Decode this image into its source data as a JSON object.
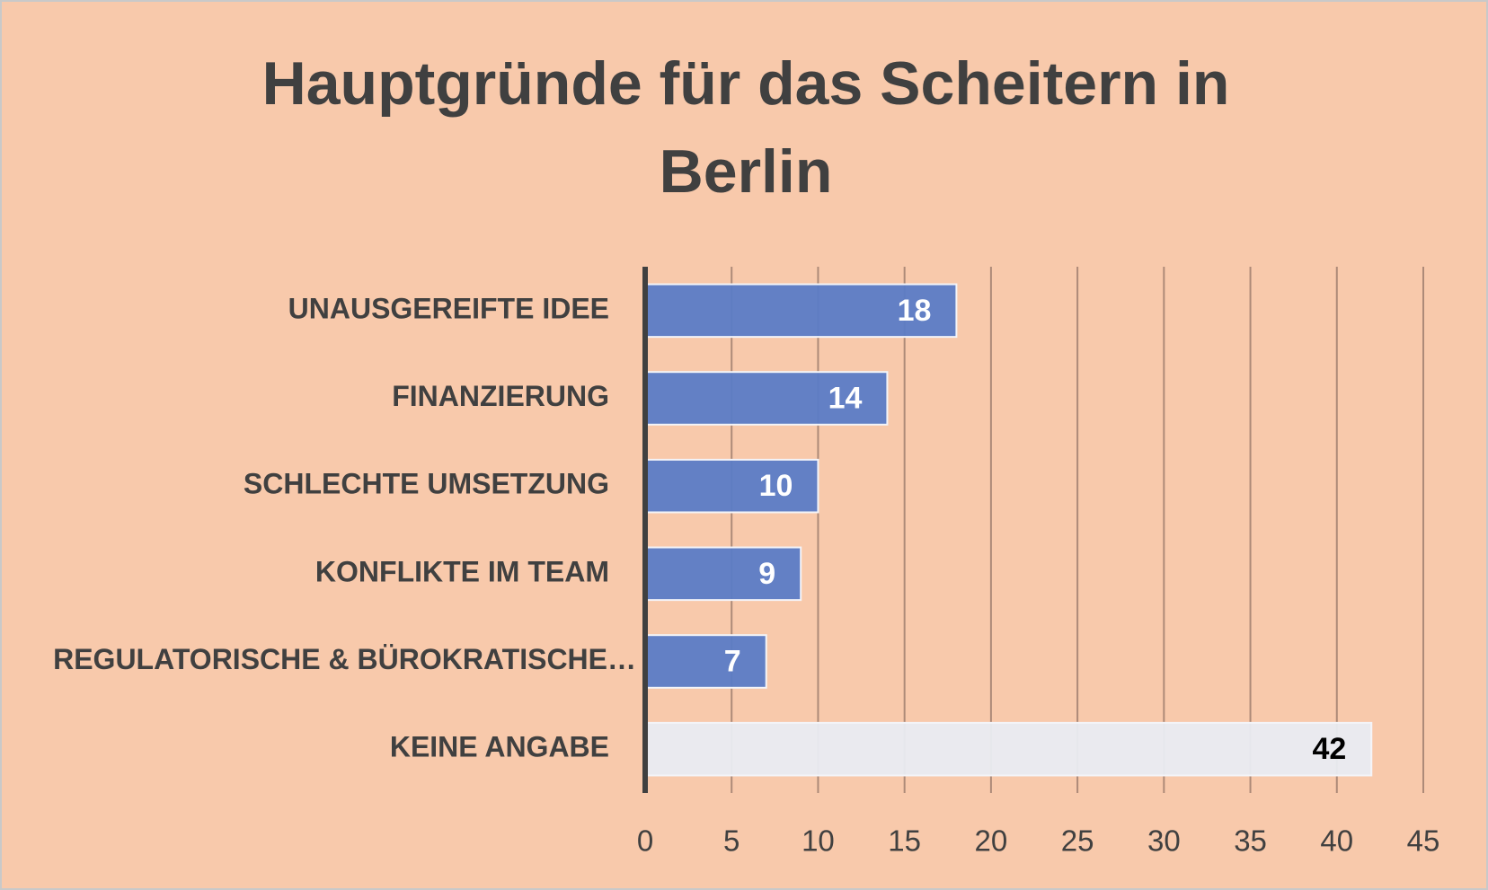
{
  "chart_data": {
    "type": "bar",
    "orientation": "horizontal",
    "title": "Hauptgründe für das Scheitern in Berlin",
    "categories": [
      "UNAUSGEREIFTE IDEE",
      "FINANZIERUNG",
      "SCHLECHTE UMSETZUNG",
      "KONFLIKTE IM TEAM",
      "REGULATORISCHE & BÜROKRATISCHE…",
      "KEINE ANGABE"
    ],
    "values": [
      18,
      14,
      10,
      9,
      7,
      42
    ],
    "colors": [
      "#5b7cc6",
      "#5b7cc6",
      "#5b7cc6",
      "#5b7cc6",
      "#5b7cc6",
      "#e9ecf2"
    ],
    "label_colors": [
      "#ffffff",
      "#ffffff",
      "#ffffff",
      "#ffffff",
      "#ffffff",
      "#000000"
    ],
    "xlim": [
      0,
      45
    ],
    "xticks": [
      0,
      5,
      10,
      15,
      20,
      25,
      30,
      35,
      40,
      45
    ],
    "grid": true
  }
}
